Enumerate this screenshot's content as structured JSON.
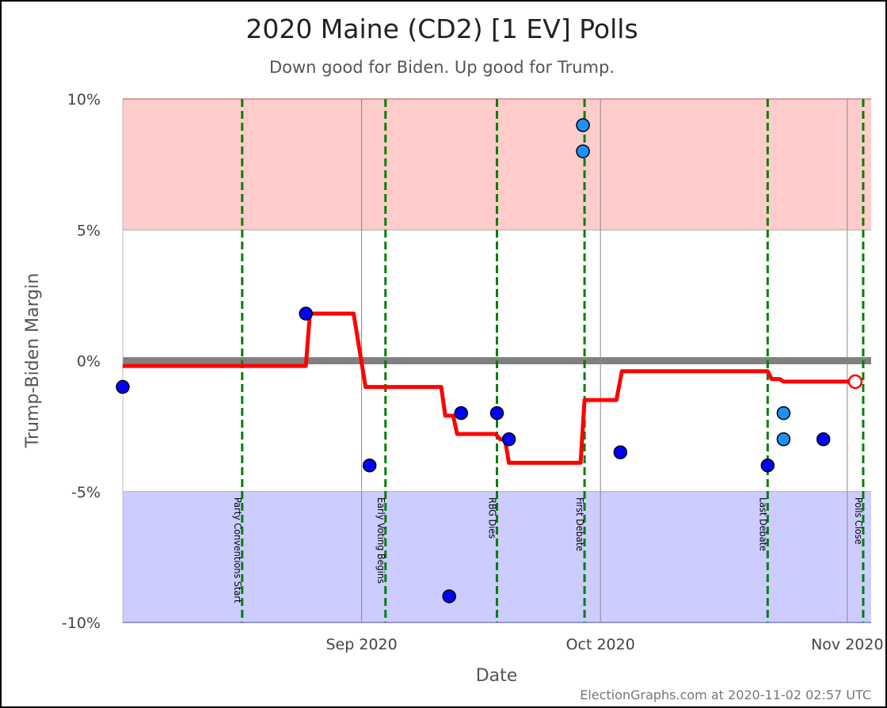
{
  "chart_data": {
    "type": "line",
    "title": "2020 Maine (CD2) [1 EV] Polls",
    "subtitle": "Down good for Biden. Up good for Trump.",
    "xlabel": "Date",
    "ylabel": "Trump-Biden Margin",
    "credit": "ElectionGraphs.com at 2020-11-02 02:57 UTC",
    "xlim": [
      "2020-08-02",
      "2020-11-04"
    ],
    "ylim": [
      -10,
      10
    ],
    "y_ticks": [
      {
        "value": 10,
        "label": "10%"
      },
      {
        "value": 5,
        "label": "5%"
      },
      {
        "value": 0,
        "label": "0%"
      },
      {
        "value": -5,
        "label": "-5%"
      },
      {
        "value": -10,
        "label": "-10%"
      }
    ],
    "x_ticks": [
      {
        "date": "2020-09-01",
        "label": "Sep 2020"
      },
      {
        "date": "2020-10-01",
        "label": "Oct 2020"
      },
      {
        "date": "2020-11-01",
        "label": "Nov 2020"
      }
    ],
    "bands": [
      {
        "from": 5,
        "to": 10,
        "color": "#ffcccc"
      },
      {
        "from": -10,
        "to": -5,
        "color": "#ccccff"
      }
    ],
    "events": [
      {
        "date": "2020-08-17",
        "label": "Party Conventions Start"
      },
      {
        "date": "2020-09-04",
        "label": "Early Voting Begins"
      },
      {
        "date": "2020-09-18",
        "label": "RBG Dies"
      },
      {
        "date": "2020-09-29",
        "label": "First Debate"
      },
      {
        "date": "2020-10-22",
        "label": "Last Debate"
      },
      {
        "date": "2020-11-03",
        "label": "Polls Close"
      }
    ],
    "series": [
      {
        "type": "step-line",
        "color": "#ff0000",
        "points": [
          [
            "2020-08-02",
            -0.2
          ],
          [
            "2020-08-25",
            -0.2
          ],
          [
            "2020-08-25.5",
            1.8
          ],
          [
            "2020-08-31",
            1.8
          ],
          [
            "2020-09-01.5",
            -1.0
          ],
          [
            "2020-09-11",
            -1.0
          ],
          [
            "2020-09-11.5",
            -2.1
          ],
          [
            "2020-09-12.5",
            -2.1
          ],
          [
            "2020-09-13",
            -2.8
          ],
          [
            "2020-09-17.8",
            -2.8
          ],
          [
            "2020-09-18.4",
            -3.0
          ],
          [
            "2020-09-19",
            -3.0
          ],
          [
            "2020-09-19.5",
            -3.9
          ],
          [
            "2020-09-28.5",
            -3.9
          ],
          [
            "2020-09-29",
            -1.5
          ],
          [
            "2020-10-03",
            -1.5
          ],
          [
            "2020-10-03.7",
            -0.4
          ],
          [
            "2020-10-22",
            -0.4
          ],
          [
            "2020-10-22.5",
            -0.7
          ],
          [
            "2020-10-23.5",
            -0.7
          ],
          [
            "2020-10-24",
            -0.8
          ],
          [
            "2020-11-02",
            -0.8
          ]
        ],
        "end_marker": {
          "date": "2020-11-02",
          "value": -0.8
        }
      }
    ],
    "polls": [
      {
        "date": "2020-08-02",
        "value": -1.0,
        "color": "#0000ff"
      },
      {
        "date": "2020-08-25",
        "value": 1.8,
        "color": "#0000ff"
      },
      {
        "date": "2020-09-02",
        "value": -4.0,
        "color": "#0000ff"
      },
      {
        "date": "2020-09-12",
        "value": -9.0,
        "color": "#0000ff"
      },
      {
        "date": "2020-09-13.5",
        "value": -2.0,
        "color": "#0000ff"
      },
      {
        "date": "2020-09-18",
        "value": -2.0,
        "color": "#0000ff"
      },
      {
        "date": "2020-09-19.5",
        "value": -3.0,
        "color": "#0000ff"
      },
      {
        "date": "2020-09-28.8",
        "value": 9.0,
        "color": "#1e90ff"
      },
      {
        "date": "2020-09-28.8",
        "value": 8.0,
        "color": "#1e90ff"
      },
      {
        "date": "2020-10-03.5",
        "value": -3.5,
        "color": "#0000ff"
      },
      {
        "date": "2020-10-22",
        "value": -4.0,
        "color": "#0000ff"
      },
      {
        "date": "2020-10-24",
        "value": -2.0,
        "color": "#1e90ff"
      },
      {
        "date": "2020-10-24",
        "value": -3.0,
        "color": "#1e90ff"
      },
      {
        "date": "2020-10-29",
        "value": -3.0,
        "color": "#0000ff"
      }
    ]
  }
}
